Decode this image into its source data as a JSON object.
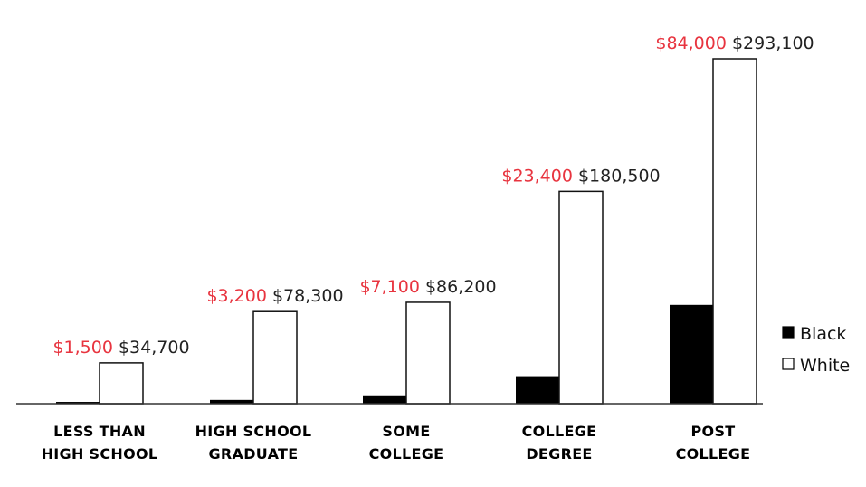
{
  "chart_data": {
    "type": "bar",
    "categories": [
      [
        "LESS THAN",
        "HIGH SCHOOL"
      ],
      [
        "HIGH SCHOOL",
        "GRADUATE"
      ],
      [
        "SOME",
        "COLLEGE"
      ],
      [
        "COLLEGE",
        "DEGREE"
      ],
      [
        "POST",
        "COLLEGE"
      ]
    ],
    "series": [
      {
        "name": "Black",
        "values": [
          1500,
          3200,
          7100,
          23400,
          84000
        ],
        "labels": [
          "$1,500",
          "$3,200",
          "$7,100",
          "$23,400",
          "$84,000"
        ],
        "color": "#000000",
        "label_color": "#e8343f"
      },
      {
        "name": "White",
        "values": [
          34700,
          78300,
          86200,
          180500,
          293100
        ],
        "labels": [
          "$34,700",
          "$78,300",
          "$86,200",
          "$180,500",
          "$293,100"
        ],
        "color": "#ffffff",
        "label_color": "#222222"
      }
    ],
    "ylim": [
      0,
      300000
    ],
    "axes": {
      "y_axis_visible": false,
      "grid": false
    },
    "legend": {
      "placement": "right",
      "entries": [
        "Black",
        "White"
      ]
    }
  }
}
